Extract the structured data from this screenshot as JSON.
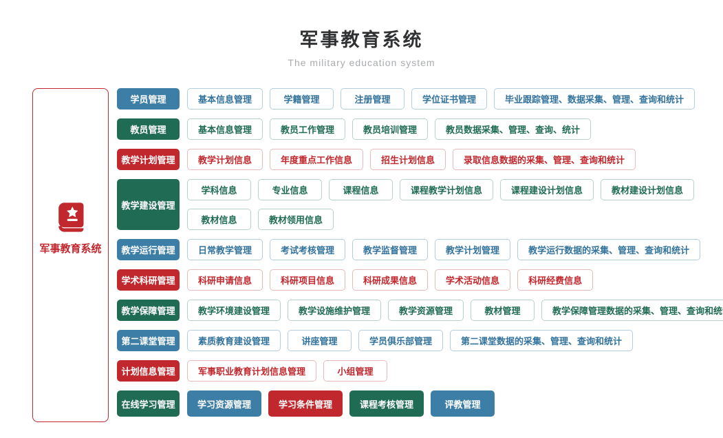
{
  "header": {
    "title": "军事教育系统",
    "subtitle": "The military education system"
  },
  "sidebar": {
    "label": "军事教育系统",
    "icon": "book-star-icon"
  },
  "themes": {
    "blue": "#3d7ea6",
    "green": "#206b54",
    "red": "#c0282e",
    "blue-tint": "#b3cfdf",
    "green-tint": "#b7d3c9",
    "red-tint": "#e9babc",
    "blue-text": "#33739c",
    "green-text": "#206b54",
    "red-text": "#c0282e",
    "title": "#2f3133",
    "subtitle": "#a9abad"
  },
  "rows": [
    {
      "category": "学员管理",
      "color": "blue",
      "lines": [
        [
          "基本信息管理",
          "学籍管理",
          "注册管理",
          "学位证书管理",
          "毕业跟踪管理、数据采集、管理、查询和统计"
        ]
      ]
    },
    {
      "category": "教员管理",
      "color": "green",
      "lines": [
        [
          "基本信息管理",
          "教员工作管理",
          "教员培训管理",
          "教员数据采集、管理、查询、统计"
        ]
      ]
    },
    {
      "category": "教学计划管理",
      "color": "red",
      "lines": [
        [
          "教学计划信息",
          "年度重点工作信息",
          "招生计划信息",
          "录取信息数据的采集、管理、查询和统计"
        ]
      ]
    },
    {
      "category": "教学建设管理",
      "color": "green",
      "lines": [
        [
          "学科信息",
          "专业信息",
          "课程信息",
          "课程教学计划信息",
          "课程建设计划信息",
          "教材建设计划信息"
        ],
        [
          "教材信息",
          "教材领用信息"
        ]
      ]
    },
    {
      "category": "教学运行管理",
      "color": "blue",
      "lines": [
        [
          "日常教学管理",
          "考试考核管理",
          "教学监督管理",
          "教学计划管理",
          "教学运行数据的采集、管理、查询和统计"
        ]
      ]
    },
    {
      "category": "学术科研管理",
      "color": "red",
      "lines": [
        [
          "科研申请信息",
          "科研项目信息",
          "科研成果信息",
          "学术活动信息",
          "科研经费信息"
        ]
      ]
    },
    {
      "category": "教学保障管理",
      "color": "green",
      "lines": [
        [
          "教学环境建设管理",
          "教学设施维护管理",
          "教学资源管理",
          "教材管理",
          "教学保障管理数据的采集、管理、查询和统计"
        ]
      ]
    },
    {
      "category": "第二课堂管理",
      "color": "blue",
      "lines": [
        [
          "素质教育建设管理",
          "讲座管理",
          "学员俱乐部管理",
          "第二课堂数据的采集、管理、查询和统计"
        ]
      ]
    },
    {
      "category": "计划信息管理",
      "color": "red",
      "lines": [
        [
          "军事职业教育计划信息管理",
          "小组管理"
        ]
      ]
    },
    {
      "category": "在线学习管理",
      "color": "green",
      "size": "large",
      "lines": [
        [
          {
            "label": "学习资源管理",
            "color": "blue"
          },
          {
            "label": "学习条件管理",
            "color": "red"
          },
          {
            "label": "课程考核管理",
            "color": "green"
          },
          {
            "label": "评教管理",
            "color": "blue"
          }
        ]
      ]
    }
  ]
}
